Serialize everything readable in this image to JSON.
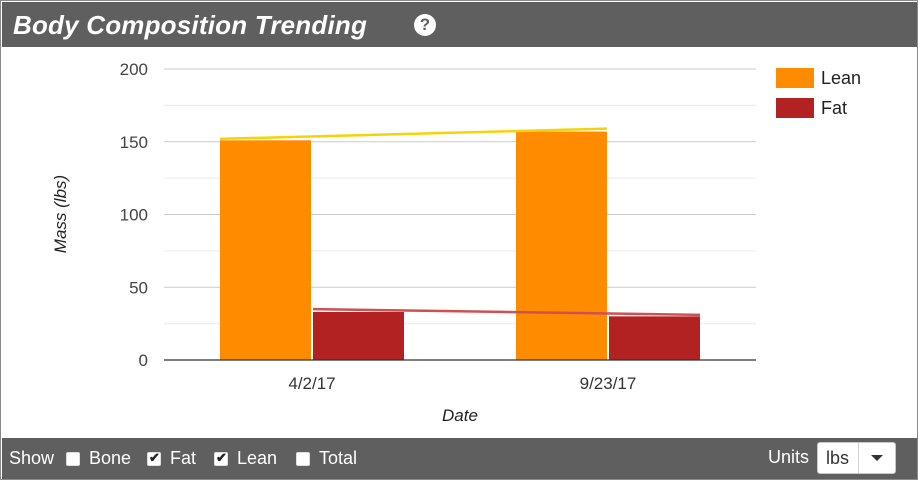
{
  "header": {
    "title": "Body Composition Trending",
    "help_icon": "question-circle-icon"
  },
  "chart_data": {
    "type": "bar",
    "title": "",
    "xlabel": "Date",
    "ylabel": "Mass (lbs)",
    "ylim": [
      0,
      200
    ],
    "yticks": [
      0,
      50,
      100,
      150,
      200
    ],
    "grid": true,
    "legend_position": "top-right",
    "categories": [
      "4/2/17",
      "9/23/17"
    ],
    "series": [
      {
        "name": "Lean",
        "color": "#ff8c00",
        "values": [
          151,
          157
        ]
      },
      {
        "name": "Fat",
        "color": "#b22222",
        "values": [
          33,
          30
        ]
      }
    ],
    "trendlines": [
      {
        "series": "Lean",
        "color": "#f5d20a",
        "values": [
          152,
          159
        ]
      },
      {
        "series": "Fat",
        "color": "#d05050",
        "values": [
          35,
          31
        ]
      }
    ]
  },
  "footer": {
    "show_label": "Show",
    "options": [
      {
        "label": "Bone",
        "checked": false
      },
      {
        "label": "Fat",
        "checked": true
      },
      {
        "label": "Lean",
        "checked": true
      },
      {
        "label": "Total",
        "checked": false
      }
    ],
    "units_label": "Units",
    "units_value": "lbs"
  }
}
